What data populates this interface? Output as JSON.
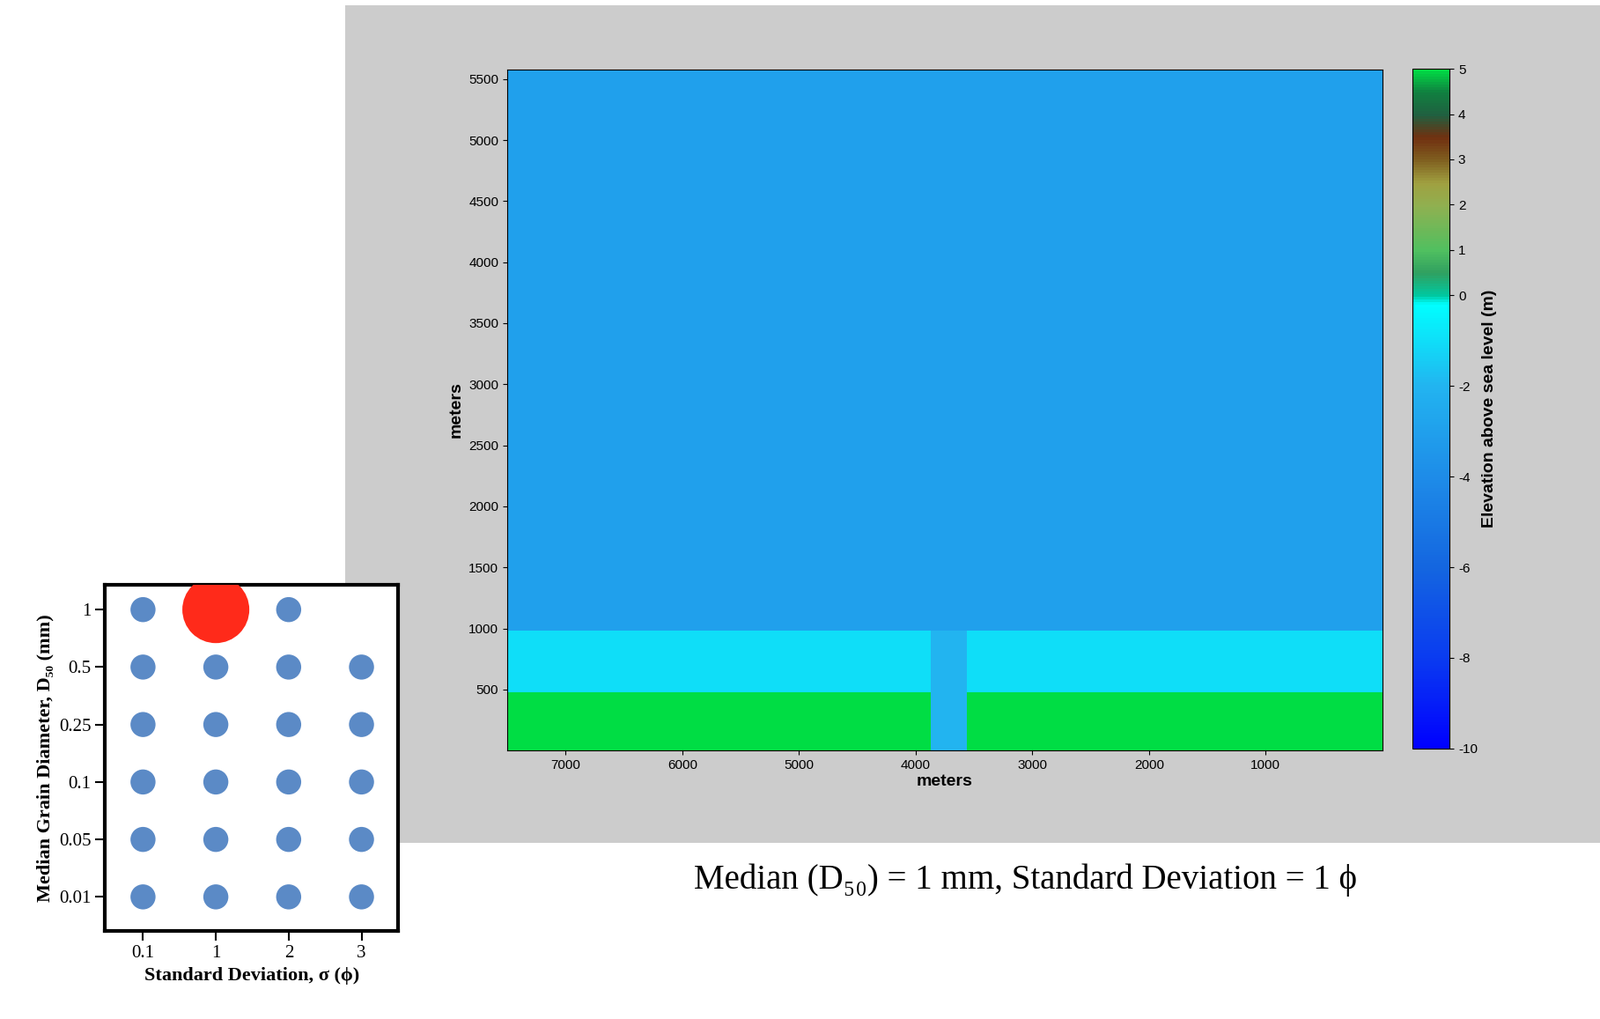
{
  "chart_data": [
    {
      "type": "scatter",
      "x_label": "Standard Deviation, σ (ϕ)",
      "y_label": "Median Grain Diameter, D₅₀ (mm)",
      "x_categories": [
        "0.1",
        "1",
        "2",
        "3"
      ],
      "y_categories": [
        "0.01",
        "0.05",
        "0.1",
        "0.25",
        "0.5",
        "1"
      ],
      "x": [
        "0.1",
        "1",
        "2",
        "0.1",
        "1",
        "2",
        "3",
        "0.1",
        "1",
        "2",
        "3",
        "0.1",
        "1",
        "2",
        "3",
        "0.1",
        "1",
        "2",
        "3",
        "0.1",
        "1",
        "2",
        "3"
      ],
      "y": [
        "1",
        "1",
        "1",
        "0.5",
        "0.5",
        "0.5",
        "0.5",
        "0.25",
        "0.25",
        "0.25",
        "0.25",
        "0.1",
        "0.1",
        "0.1",
        "0.1",
        "0.05",
        "0.05",
        "0.05",
        "0.05",
        "0.01",
        "0.01",
        "0.01",
        "0.01"
      ],
      "colors": [
        "#5b8ac6",
        "#ff2a1a",
        "#5b8ac6",
        "#5b8ac6",
        "#5b8ac6",
        "#5b8ac6",
        "#5b8ac6",
        "#5b8ac6",
        "#5b8ac6",
        "#5b8ac6",
        "#5b8ac6",
        "#5b8ac6",
        "#5b8ac6",
        "#5b8ac6",
        "#5b8ac6",
        "#5b8ac6",
        "#5b8ac6",
        "#5b8ac6",
        "#5b8ac6",
        "#5b8ac6",
        "#5b8ac6",
        "#5b8ac6",
        "#5b8ac6"
      ]
    },
    {
      "type": "heatmap",
      "x_label": "meters",
      "y_label": "meters",
      "xlim": [
        7500,
        0
      ],
      "xticks": [
        7000,
        6000,
        5000,
        4000,
        3000,
        2000,
        1000
      ],
      "ylim": [
        0,
        5580
      ],
      "yticks": [
        500,
        1000,
        1500,
        2000,
        2500,
        3000,
        3500,
        4000,
        4500,
        5000,
        5500
      ],
      "x_edges": [
        0,
        3560,
        3870,
        7500
      ],
      "y_edges": [
        0,
        480,
        980,
        5580
      ],
      "cells": [
        [
          5,
          -2,
          5
        ],
        [
          -1,
          -2,
          -1
        ],
        [
          -3,
          -3,
          -3
        ]
      ],
      "colorbar": {
        "label": "Elevation above sea level (m)",
        "range": [
          -10,
          5
        ],
        "ticks": [
          -10,
          -8,
          -6,
          -4,
          -2,
          0,
          1,
          2,
          3,
          4,
          5
        ]
      },
      "annotations": [
        "Median (D₅₀) = 1 mm, Standard Deviation = 1 ϕ"
      ]
    }
  ]
}
